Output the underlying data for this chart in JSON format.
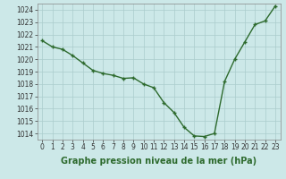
{
  "x": [
    0,
    1,
    2,
    3,
    4,
    5,
    6,
    7,
    8,
    9,
    10,
    11,
    12,
    13,
    14,
    15,
    16,
    17,
    18,
    19,
    20,
    21,
    22,
    23
  ],
  "y": [
    1021.5,
    1021.0,
    1020.8,
    1020.3,
    1019.7,
    1019.1,
    1018.85,
    1018.7,
    1018.45,
    1018.5,
    1018.0,
    1017.7,
    1016.5,
    1015.7,
    1014.5,
    1013.8,
    1013.75,
    1014.0,
    1018.2,
    1020.0,
    1021.4,
    1022.8,
    1023.1,
    1024.3
  ],
  "line_color": "#2d6a2d",
  "marker_color": "#2d6a2d",
  "bg_color": "#cce8e8",
  "grid_color": "#aacccc",
  "xlabel": "Graphe pression niveau de la mer (hPa)",
  "ylim_min": 1013.5,
  "ylim_max": 1024.5,
  "xlim_min": -0.5,
  "xlim_max": 23.5,
  "yticks": [
    1014,
    1015,
    1016,
    1017,
    1018,
    1019,
    1020,
    1021,
    1022,
    1023,
    1024
  ],
  "xticks": [
    0,
    1,
    2,
    3,
    4,
    5,
    6,
    7,
    8,
    9,
    10,
    11,
    12,
    13,
    14,
    15,
    16,
    17,
    18,
    19,
    20,
    21,
    22,
    23
  ],
  "tick_fontsize": 5.5,
  "xlabel_fontsize": 7.0,
  "marker_size": 3.5,
  "line_width": 1.0
}
